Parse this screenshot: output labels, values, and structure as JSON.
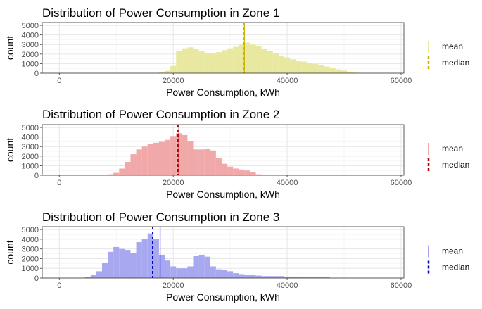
{
  "chart_data": [
    {
      "type": "bar",
      "title": "Distribution of Power Consumption in Zone 1",
      "xlabel": "Power Consumption, kWh",
      "ylabel": "count",
      "xlim": [
        -3000,
        60500
      ],
      "ylim": [
        0,
        5300
      ],
      "x_ticks": [
        0,
        20000,
        40000,
        60000
      ],
      "y_ticks": [
        0,
        1000,
        2000,
        3000,
        4000,
        5000
      ],
      "grid": true,
      "bin_width": 1000,
      "fill_color": "#e8e8a0",
      "line_color": "#c9b400",
      "mean": 32500,
      "median": 32400,
      "legend_position": "right",
      "legend_entries": [
        "mean",
        "median"
      ],
      "bins": [
        {
          "x": 17000,
          "count": 30
        },
        {
          "x": 18000,
          "count": 120
        },
        {
          "x": 19000,
          "count": 250
        },
        {
          "x": 20000,
          "count": 750
        },
        {
          "x": 21000,
          "count": 2300
        },
        {
          "x": 22000,
          "count": 2600
        },
        {
          "x": 23000,
          "count": 2700
        },
        {
          "x": 24000,
          "count": 2550
        },
        {
          "x": 25000,
          "count": 2300
        },
        {
          "x": 26000,
          "count": 2150
        },
        {
          "x": 27000,
          "count": 2050
        },
        {
          "x": 28000,
          "count": 2200
        },
        {
          "x": 29000,
          "count": 2400
        },
        {
          "x": 30000,
          "count": 2600
        },
        {
          "x": 31000,
          "count": 2750
        },
        {
          "x": 32000,
          "count": 3000
        },
        {
          "x": 33000,
          "count": 3200
        },
        {
          "x": 34000,
          "count": 3000
        },
        {
          "x": 35000,
          "count": 2800
        },
        {
          "x": 36000,
          "count": 2550
        },
        {
          "x": 37000,
          "count": 2350
        },
        {
          "x": 38000,
          "count": 2050
        },
        {
          "x": 39000,
          "count": 1850
        },
        {
          "x": 40000,
          "count": 1650
        },
        {
          "x": 41000,
          "count": 1450
        },
        {
          "x": 42000,
          "count": 1300
        },
        {
          "x": 43000,
          "count": 1200
        },
        {
          "x": 44000,
          "count": 1050
        },
        {
          "x": 45000,
          "count": 950
        },
        {
          "x": 46000,
          "count": 850
        },
        {
          "x": 47000,
          "count": 700
        },
        {
          "x": 48000,
          "count": 550
        },
        {
          "x": 49000,
          "count": 400
        },
        {
          "x": 50000,
          "count": 280
        },
        {
          "x": 51000,
          "count": 160
        },
        {
          "x": 52000,
          "count": 60
        }
      ]
    },
    {
      "type": "bar",
      "title": "Distribution of Power Consumption in Zone 2",
      "xlabel": "Power Consumption, kWh",
      "ylabel": "count",
      "xlim": [
        -3000,
        60500
      ],
      "ylim": [
        0,
        5300
      ],
      "x_ticks": [
        0,
        20000,
        40000,
        60000
      ],
      "y_ticks": [
        0,
        1000,
        2000,
        3000,
        4000,
        5000
      ],
      "grid": true,
      "bin_width": 1000,
      "fill_color": "#f0a8a8",
      "line_color": "#b00000",
      "mean": 21000,
      "median": 20800,
      "legend_position": "right",
      "legend_entries": [
        "mean",
        "median"
      ],
      "bins": [
        {
          "x": 9000,
          "count": 100
        },
        {
          "x": 10000,
          "count": 250
        },
        {
          "x": 11000,
          "count": 700
        },
        {
          "x": 12000,
          "count": 1400
        },
        {
          "x": 13000,
          "count": 2200
        },
        {
          "x": 14000,
          "count": 2700
        },
        {
          "x": 15000,
          "count": 3000
        },
        {
          "x": 16000,
          "count": 3300
        },
        {
          "x": 17000,
          "count": 3400
        },
        {
          "x": 18000,
          "count": 3500
        },
        {
          "x": 19000,
          "count": 3700
        },
        {
          "x": 20000,
          "count": 4100
        },
        {
          "x": 21000,
          "count": 4400
        },
        {
          "x": 22000,
          "count": 4200
        },
        {
          "x": 23000,
          "count": 3600
        },
        {
          "x": 24000,
          "count": 2700
        },
        {
          "x": 25000,
          "count": 2700
        },
        {
          "x": 26000,
          "count": 2800
        },
        {
          "x": 27000,
          "count": 2600
        },
        {
          "x": 28000,
          "count": 1800
        },
        {
          "x": 29000,
          "count": 1200
        },
        {
          "x": 30000,
          "count": 900
        },
        {
          "x": 31000,
          "count": 700
        },
        {
          "x": 32000,
          "count": 600
        },
        {
          "x": 33000,
          "count": 500
        },
        {
          "x": 34000,
          "count": 300
        },
        {
          "x": 35000,
          "count": 100
        }
      ]
    },
    {
      "type": "bar",
      "title": "Distribution of Power Consumption in Zone 3",
      "xlabel": "Power Consumption, kWh",
      "ylabel": "count",
      "xlim": [
        -3000,
        60500
      ],
      "ylim": [
        0,
        5300
      ],
      "x_ticks": [
        0,
        20000,
        40000,
        60000
      ],
      "y_ticks": [
        0,
        1000,
        2000,
        3000,
        4000,
        5000
      ],
      "grid": true,
      "bin_width": 1000,
      "fill_color": "#a8a8f0",
      "line_color": "#0000c8",
      "mean": 17700,
      "median": 16400,
      "legend_position": "right",
      "legend_entries": [
        "mean",
        "median"
      ],
      "bins": [
        {
          "x": 5000,
          "count": 100
        },
        {
          "x": 6000,
          "count": 300
        },
        {
          "x": 7000,
          "count": 700
        },
        {
          "x": 8000,
          "count": 1600
        },
        {
          "x": 9000,
          "count": 2700
        },
        {
          "x": 10000,
          "count": 3200
        },
        {
          "x": 11000,
          "count": 3000
        },
        {
          "x": 12000,
          "count": 2900
        },
        {
          "x": 13000,
          "count": 2600
        },
        {
          "x": 14000,
          "count": 3700
        },
        {
          "x": 15000,
          "count": 4000
        },
        {
          "x": 16000,
          "count": 4600
        },
        {
          "x": 17000,
          "count": 4000
        },
        {
          "x": 18000,
          "count": 2400
        },
        {
          "x": 19000,
          "count": 1800
        },
        {
          "x": 20000,
          "count": 1200
        },
        {
          "x": 21000,
          "count": 1000
        },
        {
          "x": 22000,
          "count": 1000
        },
        {
          "x": 23000,
          "count": 1200
        },
        {
          "x": 24000,
          "count": 2300
        },
        {
          "x": 25000,
          "count": 2400
        },
        {
          "x": 26000,
          "count": 2200
        },
        {
          "x": 27000,
          "count": 1200
        },
        {
          "x": 28000,
          "count": 900
        },
        {
          "x": 29000,
          "count": 800
        },
        {
          "x": 30000,
          "count": 700
        },
        {
          "x": 31000,
          "count": 500
        },
        {
          "x": 32000,
          "count": 400
        },
        {
          "x": 33000,
          "count": 350
        },
        {
          "x": 34000,
          "count": 300
        },
        {
          "x": 35000,
          "count": 250
        },
        {
          "x": 36000,
          "count": 200
        },
        {
          "x": 37000,
          "count": 200
        },
        {
          "x": 38000,
          "count": 200
        },
        {
          "x": 39000,
          "count": 200
        },
        {
          "x": 40000,
          "count": 150
        },
        {
          "x": 41000,
          "count": 150
        },
        {
          "x": 42000,
          "count": 150
        },
        {
          "x": 43000,
          "count": 100
        },
        {
          "x": 44000,
          "count": 100
        },
        {
          "x": 45000,
          "count": 100
        },
        {
          "x": 46000,
          "count": 80
        },
        {
          "x": 47000,
          "count": 80
        }
      ]
    }
  ]
}
